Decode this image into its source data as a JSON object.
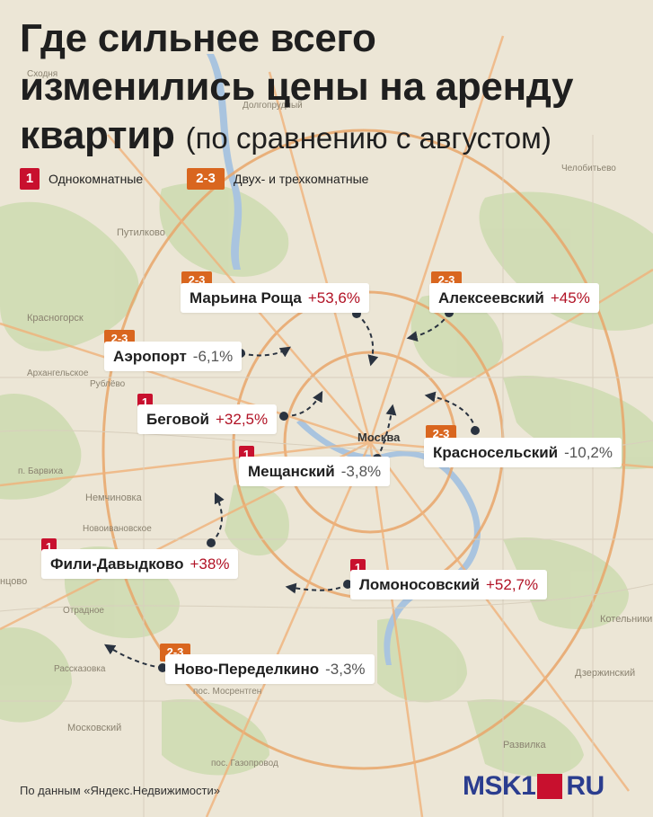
{
  "title": {
    "line1": "Где сильнее всего",
    "line2": "изменились цены на аренду",
    "line3_bold": "квартир",
    "line3_sub": "(по сравнению с августом)"
  },
  "legend": {
    "one_tag": "1",
    "one_label": "Однокомнатные",
    "multi_tag": "2-3",
    "multi_label": "Двух- и трехкомнатные"
  },
  "districts": [
    {
      "tag": "2-3",
      "name": "Марьина Роща",
      "value": "+53,6%"
    },
    {
      "tag": "2-3",
      "name": "Алексеевский",
      "value": "+45%"
    },
    {
      "tag": "2-3",
      "name": "Аэропорт",
      "value": "-6,1%"
    },
    {
      "tag": "1",
      "name": "Беговой",
      "value": "+32,5%"
    },
    {
      "tag": "2-3",
      "name": "Красносельский",
      "value": "-10,2%"
    },
    {
      "tag": "1",
      "name": "Мещанский",
      "value": "-3,8%"
    },
    {
      "tag": "1",
      "name": "Фили-Давыдково",
      "value": "+38%"
    },
    {
      "tag": "1",
      "name": "Ломоносовский",
      "value": "+52,7%"
    },
    {
      "tag": "2-3",
      "name": "Ново-Переделкино",
      "value": "-3,3%"
    }
  ],
  "map_labels": {
    "moscow": "Москва",
    "skhodnya": "Сходня",
    "dolgoprudny": "Долгопрудный",
    "putilkovo": "Путилково",
    "krasnogorsk": "Красногорск",
    "arkhangelskoe": "Архангельское",
    "rublevo": "Рублёво",
    "barvikha": "п. Барвиха",
    "nemchinovka": "Немчиновка",
    "novoivankovskoe": "Новоивановское",
    "odintsovo": "нцово",
    "otradnoe": "Отрадное",
    "rasskazovka": "Рассказовка",
    "mosrentgen": "пос. Мосрентген",
    "moskovsky": "Московский",
    "kotelniki": "Котельники",
    "dzerzhinsky": "Дзержинский",
    "razvilka": "Развилка",
    "gazoprovod": "пос. Газопровод",
    "chelobitievo": "Челобитьево"
  },
  "source": "По данным «Яндекс.Недвижимости»",
  "logo": {
    "brand": "MSK1",
    "tld": "RU"
  },
  "colors": {
    "one_room": "#c8102e",
    "multi_room": "#d9661f",
    "positive": "#b11225",
    "negative": "#555555",
    "logo_blue": "#2b3d8f"
  }
}
